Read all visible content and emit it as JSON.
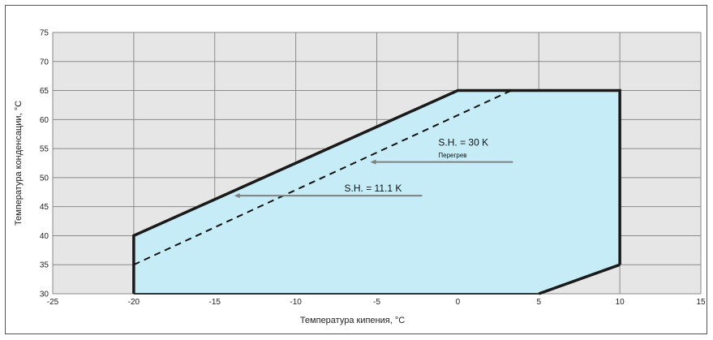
{
  "chart_data": {
    "type": "area",
    "xlabel": "Температура кипения, °C",
    "ylabel": "Температура конденсации, °C",
    "xlim": [
      -25,
      15
    ],
    "ylim": [
      30,
      75
    ],
    "xticks": [
      -25,
      -20,
      -15,
      -10,
      -5,
      0,
      5,
      10,
      15
    ],
    "yticks": [
      30,
      35,
      40,
      45,
      50,
      55,
      60,
      65,
      70,
      75
    ],
    "xtick_labels": [
      "-25",
      "-20",
      "-15",
      "-10",
      "-5",
      "0",
      "5",
      "10",
      "15"
    ],
    "ytick_labels": [
      "30",
      "35",
      "40",
      "45",
      "50",
      "55",
      "60",
      "65",
      "70",
      "75"
    ],
    "grid": true,
    "envelope": {
      "x": [
        -20,
        -20,
        0,
        10,
        10,
        5
      ],
      "y": [
        30,
        40,
        65,
        65,
        35,
        30
      ],
      "fill": "#c6ecf7",
      "stroke": "#1a1a1a"
    },
    "dashed_line": {
      "x": [
        -20,
        3.3
      ],
      "y": [
        35,
        65
      ]
    },
    "annotations": [
      {
        "text": "S.H. = 30 K",
        "x": -1.2,
        "y": 55.5,
        "style": "big"
      },
      {
        "text": "Перегрев",
        "x": -1.2,
        "y": 53.5,
        "style": "small"
      },
      {
        "text": "S.H. = 11.1 K",
        "x": -7,
        "y": 47.6,
        "style": "big"
      }
    ],
    "arrows": [
      {
        "x1": 3.4,
        "y1": 52.7,
        "x2": -5.4,
        "y2": 52.7
      },
      {
        "x1": -2.2,
        "y1": 46.9,
        "x2": -13.8,
        "y2": 46.9
      }
    ],
    "colors": {
      "plot_background": "#e6e6e6",
      "grid": "#8a8a8a",
      "arrow": "#808080"
    }
  }
}
